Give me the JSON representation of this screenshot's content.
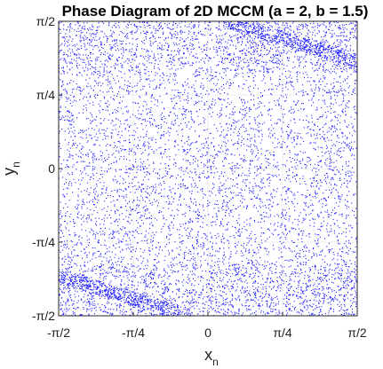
{
  "chart_data": {
    "type": "scatter",
    "title": "Phase Diagram of 2D MCCM (a = 2, b = 1.5)",
    "xlabel": "x",
    "xlabel_subscript": "n",
    "ylabel": "y",
    "ylabel_subscript": "n",
    "xlim": [
      -1.5708,
      1.5708
    ],
    "ylim": [
      -1.5708,
      1.5708
    ],
    "xticks": [
      {
        "value": -1.5708,
        "label": "-π/2"
      },
      {
        "value": -0.7854,
        "label": "-π/4"
      },
      {
        "value": 0,
        "label": "0"
      },
      {
        "value": 0.7854,
        "label": "π/4"
      },
      {
        "value": 1.5708,
        "label": "π/2"
      }
    ],
    "yticks": [
      {
        "value": -1.5708,
        "label": "-π/2"
      },
      {
        "value": -0.7854,
        "label": "-π/4"
      },
      {
        "value": 0,
        "label": "0"
      },
      {
        "value": 0.7854,
        "label": "π/4"
      },
      {
        "value": 1.5708,
        "label": "π/2"
      }
    ],
    "grid": true,
    "series": [
      {
        "marker_color": "#1f1fff",
        "marker": "point",
        "num_points": 9000,
        "distribution": "dense irregular cloud filling the whole square",
        "dense_bands": [
          {
            "from": [
              0.2,
              1.5708
            ],
            "to": [
              1.5708,
              1.15
            ]
          },
          {
            "from": [
              -1.5708,
              -1.15
            ],
            "to": [
              -0.2,
              -1.5708
            ]
          }
        ]
      }
    ]
  }
}
